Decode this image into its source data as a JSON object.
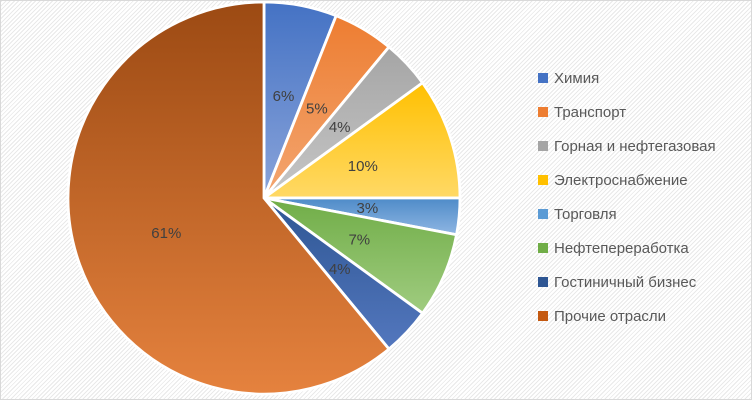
{
  "chart_data": {
    "type": "pie",
    "title": "",
    "legend_position": "right",
    "start_angle_deg": 0,
    "direction": "clockwise",
    "label_color": "#404040",
    "legend_text_color": "#595959",
    "background_pattern": "light-diagonal-stripes",
    "slices": [
      {
        "label": "Химия",
        "value": 6,
        "pct_label": "6%",
        "color": "#4472C4",
        "gradient": [
          "#4472C4",
          "#8AA4DA"
        ]
      },
      {
        "label": "Транспорт",
        "value": 5,
        "pct_label": "5%",
        "color": "#ED7D31",
        "gradient": [
          "#ED7D31",
          "#F3A671"
        ]
      },
      {
        "label": "Горная и нефтегазовая",
        "value": 4,
        "pct_label": "4%",
        "color": "#A5A5A5",
        "gradient": [
          "#A5A5A5",
          "#C6C6C6"
        ]
      },
      {
        "label": "Электроснабжение",
        "value": 10,
        "pct_label": "10%",
        "color": "#FFC000",
        "gradient": [
          "#FFC000",
          "#FFD966"
        ]
      },
      {
        "label": "Торговля",
        "value": 3,
        "pct_label": "3%",
        "color": "#5B9BD5",
        "gradient": [
          "#4E8BC8",
          "#8FB6E3"
        ]
      },
      {
        "label": "Нефтепереработка",
        "value": 7,
        "pct_label": "7%",
        "color": "#70AD47",
        "gradient": [
          "#70AD47",
          "#A0CC80"
        ]
      },
      {
        "label": "Гостиничный бизнес",
        "value": 4,
        "pct_label": "4%",
        "color": "#2E5693",
        "gradient": [
          "#2E5693",
          "#5377BE"
        ]
      },
      {
        "label": "Прочие отрасли",
        "value": 61,
        "pct_label": "61%",
        "color": "#C45911",
        "gradient": [
          "#9C4A13",
          "#E5823E"
        ]
      }
    ]
  }
}
